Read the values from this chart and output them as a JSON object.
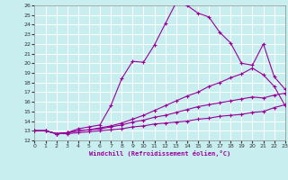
{
  "xlabel": "Windchill (Refroidissement éolien,°C)",
  "background_color": "#c8eef0",
  "grid_color": "#ffffff",
  "line_color": "#990099",
  "xlim": [
    0,
    23
  ],
  "ylim": [
    12,
    26
  ],
  "xticks": [
    0,
    1,
    2,
    3,
    4,
    5,
    6,
    7,
    8,
    9,
    10,
    11,
    12,
    13,
    14,
    15,
    16,
    17,
    18,
    19,
    20,
    21,
    22,
    23
  ],
  "yticks": [
    12,
    13,
    14,
    15,
    16,
    17,
    18,
    19,
    20,
    21,
    22,
    23,
    24,
    25,
    26
  ],
  "curve1_x": [
    0,
    1,
    2,
    3,
    4,
    5,
    6,
    7,
    8,
    9,
    10,
    11,
    12,
    13,
    14,
    15,
    16,
    17,
    18,
    19,
    20,
    21,
    22,
    23
  ],
  "curve1_y": [
    13,
    13,
    12.7,
    12.8,
    13.2,
    13.4,
    13.6,
    15.6,
    18.4,
    20.2,
    20.1,
    21.9,
    24.1,
    26.3,
    26.0,
    25.2,
    24.8,
    23.2,
    22.1,
    20.0,
    19.8,
    22.0,
    18.6,
    17.3
  ],
  "curve2_x": [
    0,
    1,
    2,
    3,
    4,
    5,
    6,
    7,
    8,
    9,
    10,
    11,
    12,
    13,
    14,
    15,
    16,
    17,
    18,
    19,
    20,
    21,
    22,
    23
  ],
  "curve2_y": [
    13,
    13,
    12.7,
    12.8,
    13.0,
    13.1,
    13.3,
    13.5,
    13.8,
    14.2,
    14.6,
    15.1,
    15.6,
    16.1,
    16.6,
    17.0,
    17.6,
    18.0,
    18.5,
    18.9,
    19.5,
    18.8,
    17.6,
    15.6
  ],
  "curve3_x": [
    0,
    1,
    2,
    3,
    4,
    5,
    6,
    7,
    8,
    9,
    10,
    11,
    12,
    13,
    14,
    15,
    16,
    17,
    18,
    19,
    20,
    21,
    22,
    23
  ],
  "curve3_y": [
    13,
    13,
    12.7,
    12.8,
    13.0,
    13.1,
    13.2,
    13.4,
    13.6,
    13.9,
    14.1,
    14.4,
    14.6,
    14.9,
    15.2,
    15.5,
    15.7,
    15.9,
    16.1,
    16.3,
    16.5,
    16.4,
    16.7,
    16.9
  ],
  "curve4_x": [
    0,
    1,
    2,
    3,
    4,
    5,
    6,
    7,
    8,
    9,
    10,
    11,
    12,
    13,
    14,
    15,
    16,
    17,
    18,
    19,
    20,
    21,
    22,
    23
  ],
  "curve4_y": [
    13,
    13,
    12.7,
    12.7,
    12.8,
    12.9,
    13.0,
    13.1,
    13.2,
    13.4,
    13.5,
    13.7,
    13.8,
    13.9,
    14.0,
    14.2,
    14.3,
    14.5,
    14.6,
    14.7,
    14.9,
    15.0,
    15.4,
    15.7
  ]
}
